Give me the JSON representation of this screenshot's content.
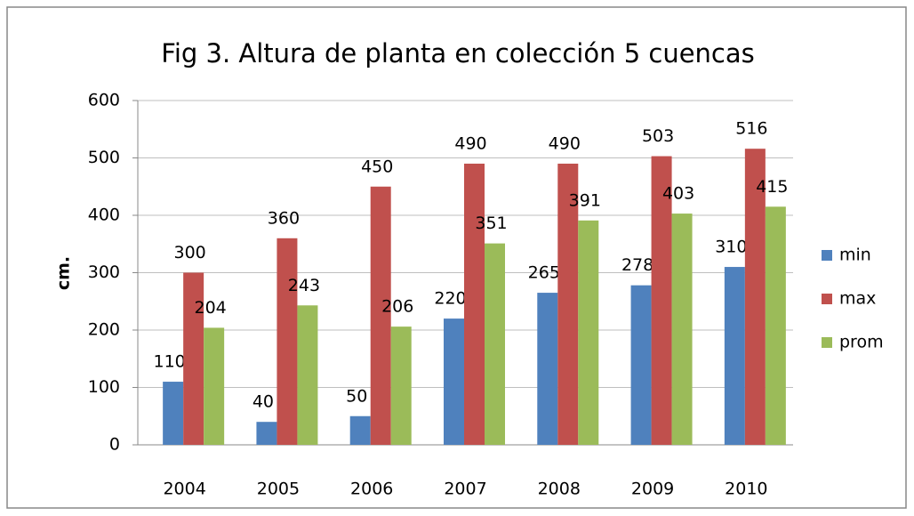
{
  "chart_data": {
    "type": "bar",
    "title": "Fig 3. Altura de planta  en colección 5 cuencas",
    "y_label": "cm.",
    "categories": [
      "2004",
      "2005",
      "2006",
      "2007",
      "2008",
      "2009",
      "2010"
    ],
    "series": [
      {
        "name": "min",
        "color": "#4f81bd",
        "values": [
          110,
          40,
          50,
          220,
          265,
          278,
          310
        ]
      },
      {
        "name": "max",
        "color": "#c0504d",
        "values": [
          300,
          360,
          450,
          490,
          490,
          503,
          516
        ]
      },
      {
        "name": "prom",
        "color": "#9bbb59",
        "values": [
          204,
          243,
          206,
          351,
          391,
          403,
          415
        ]
      }
    ],
    "ylim": [
      0,
      600
    ],
    "yticks": [
      0,
      100,
      200,
      300,
      400,
      500,
      600
    ],
    "grid": true,
    "legend": "right"
  }
}
